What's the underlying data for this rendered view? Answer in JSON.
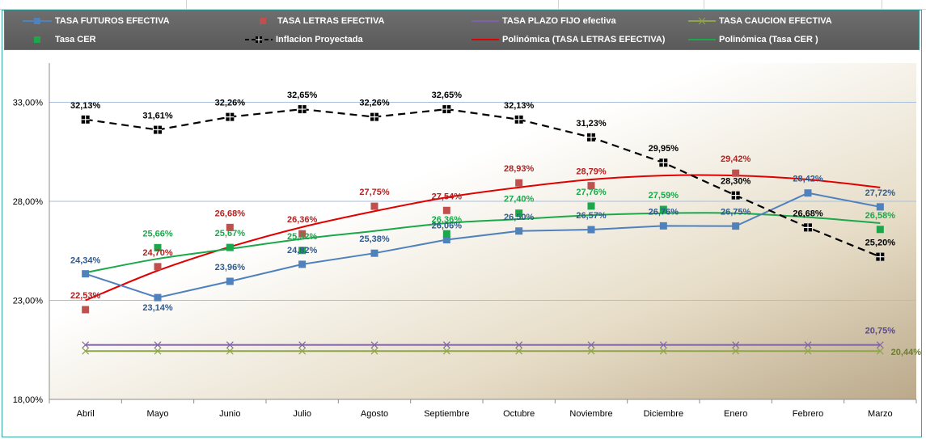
{
  "chart_data": {
    "type": "line",
    "categories": [
      "Abril",
      "Mayo",
      "Junio",
      "Julio",
      "Agosto",
      "Septiembre",
      "Octubre",
      "Noviembre",
      "Diciembre",
      "Enero",
      "Febrero",
      "Marzo"
    ],
    "y_tick_labels": [
      "18,00%",
      "23,00%",
      "28,00%",
      "33,00%"
    ],
    "ylim": [
      18,
      33
    ],
    "grid": "horizontal",
    "legend_position": "top",
    "series": [
      {
        "name": "TASA  FUTUROS EFECTIVA",
        "color": "#4f81bd",
        "marker": "square",
        "values": [
          24.34,
          23.14,
          23.96,
          24.82,
          25.38,
          26.06,
          26.5,
          26.57,
          26.76,
          26.75,
          28.42,
          27.72
        ],
        "labels": [
          "24,34%",
          "23,14%",
          "23,96%",
          "24,82%",
          "25,38%",
          "26,06%",
          "26,50%",
          "26,57%",
          "26,76%",
          "26,75%",
          "28,42%",
          "27,72%"
        ]
      },
      {
        "name": "TASA LETRAS EFECTIVA",
        "color": "#c0504d",
        "marker": "square",
        "line": false,
        "values": [
          22.53,
          24.7,
          26.68,
          26.36,
          27.75,
          27.54,
          28.93,
          28.79,
          null,
          29.42,
          null,
          null
        ],
        "labels": [
          "22,53%",
          "24,70%",
          "26,68%",
          "26,36%",
          "27,75%",
          "27,54%",
          "28,93%",
          "28,79%",
          "",
          "29,42%",
          "",
          ""
        ]
      },
      {
        "name": "TASA PLAZO FIJO efectiva",
        "color": "#7f61a8",
        "marker": "x",
        "values": [
          20.75,
          20.75,
          20.75,
          20.75,
          20.75,
          20.75,
          20.75,
          20.75,
          20.75,
          20.75,
          20.75,
          20.75
        ],
        "labels": [
          "",
          "",
          "",
          "",
          "",
          "",
          "",
          "",
          "",
          "",
          "",
          "20,75%"
        ]
      },
      {
        "name": "TASA CAUCION EFECTIVA",
        "color": "#8ea44a",
        "marker": "x",
        "values": [
          20.44,
          20.44,
          20.44,
          20.44,
          20.44,
          20.44,
          20.44,
          20.44,
          20.44,
          20.44,
          20.44,
          20.44
        ],
        "labels": [
          "",
          "",
          "",
          "",
          "",
          "",
          "",
          "",
          "",
          "",
          "",
          "20,44%"
        ]
      },
      {
        "name": "Tasa CER",
        "color": "#1aa84a",
        "marker": "square",
        "line": false,
        "values": [
          null,
          25.66,
          25.67,
          25.52,
          null,
          26.36,
          27.4,
          27.76,
          27.59,
          null,
          null,
          26.58
        ],
        "labels": [
          "",
          "25,66%",
          "25,67%",
          "25,52%",
          "",
          "26,36%",
          "27,40%",
          "27,76%",
          "27,59%",
          "",
          "",
          "26,58%"
        ]
      },
      {
        "name": "Inflacion Proyectada",
        "color": "#000000",
        "marker": "square-cross",
        "dashed": true,
        "values": [
          32.13,
          31.61,
          32.26,
          32.65,
          32.26,
          32.65,
          32.13,
          31.23,
          29.95,
          28.3,
          26.68,
          25.2
        ],
        "labels": [
          "32,13%",
          "31,61%",
          "32,26%",
          "32,65%",
          "32,26%",
          "32,65%",
          "32,13%",
          "31,23%",
          "29,95%",
          "28,30%",
          "26,68%",
          "25,20%"
        ]
      },
      {
        "name": "Polinómica (TASA LETRAS EFECTIVA)",
        "color": "#e00000",
        "trendline": true,
        "values": [
          23.0,
          24.5,
          25.7,
          26.7,
          27.5,
          28.2,
          28.7,
          29.1,
          29.3,
          29.3,
          29.1,
          28.7
        ]
      },
      {
        "name": "Polinómica (Tasa CER )",
        "color": "#1aa84a",
        "trendline": true,
        "values": [
          24.4,
          25.1,
          25.6,
          26.1,
          26.5,
          26.9,
          27.1,
          27.3,
          27.4,
          27.4,
          27.2,
          26.9
        ]
      }
    ]
  }
}
